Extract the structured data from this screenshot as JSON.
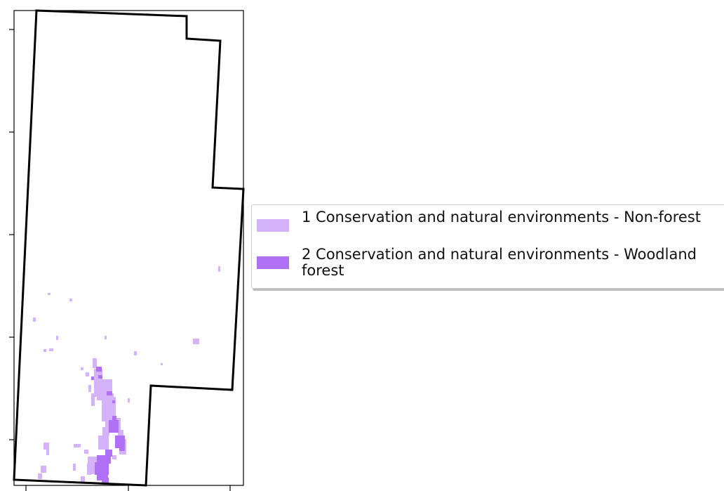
{
  "map": {
    "colors": {
      "boundary": "#000000",
      "non_forest": "#d4b3fb",
      "woodland_forest": "#b071f8",
      "frame": "#000000"
    }
  },
  "legend": {
    "items": [
      {
        "label": "1 Conservation and natural environments - Non-forest",
        "color": "#d4b3fb"
      },
      {
        "label": "2 Conservation and natural environments - Woodland forest",
        "color": "#b071f8"
      }
    ]
  }
}
